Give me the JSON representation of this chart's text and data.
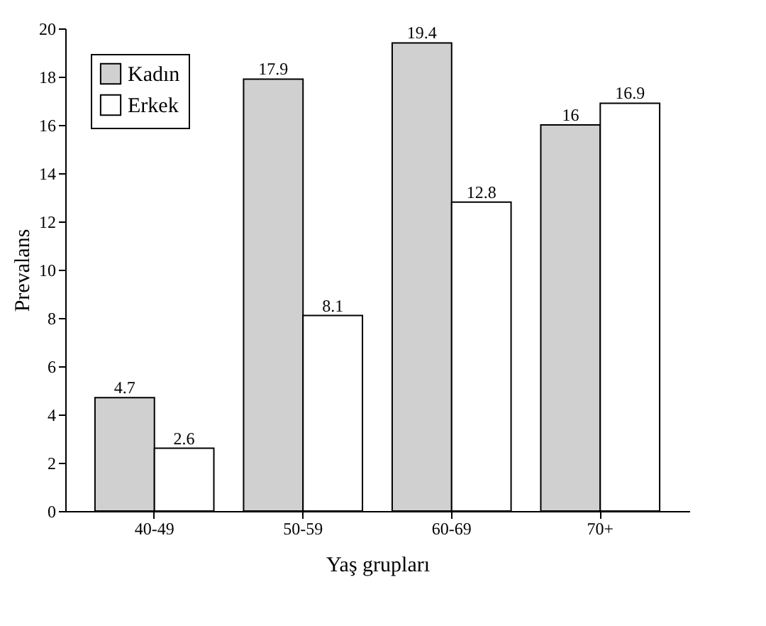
{
  "chart_data": {
    "type": "bar",
    "xlabel": "Yaş grupları",
    "ylabel": "Prevalans",
    "categories": [
      "40-49",
      "50-59",
      "60-69",
      "70+"
    ],
    "series": [
      {
        "name": "Kadın",
        "color": "#d0d0d0",
        "values": [
          4.7,
          17.9,
          19.4,
          16
        ]
      },
      {
        "name": "Erkek",
        "color": "#ffffff",
        "values": [
          2.6,
          8.1,
          12.8,
          16.9
        ]
      }
    ],
    "ylim": [
      0,
      20
    ],
    "yticks": [
      0,
      2,
      4,
      6,
      8,
      10,
      12,
      14,
      16,
      18,
      20
    ],
    "grid": false,
    "legend": "top left",
    "data_labels": true
  }
}
